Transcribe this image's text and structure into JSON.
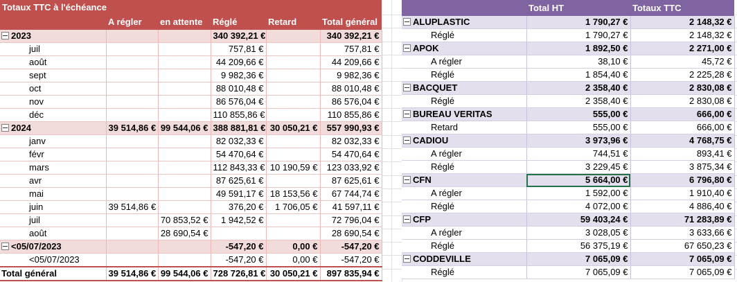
{
  "left_pivot": {
    "title": "Totaux TTC à l'échéance",
    "columns": [
      "",
      "A régler",
      "en attente",
      "Réglé",
      "Retard",
      "Total général"
    ],
    "rows": [
      {
        "level": 0,
        "label": "2023",
        "vals": [
          "",
          "",
          "340 392,21 €",
          "",
          "340 392,21 €"
        ]
      },
      {
        "level": 1,
        "label": "juil",
        "vals": [
          "",
          "",
          "757,81 €",
          "",
          "757,81 €"
        ]
      },
      {
        "level": 1,
        "label": "août",
        "vals": [
          "",
          "",
          "44 209,66 €",
          "",
          "44 209,66 €"
        ]
      },
      {
        "level": 1,
        "label": "sept",
        "vals": [
          "",
          "",
          "9 982,36 €",
          "",
          "9 982,36 €"
        ]
      },
      {
        "level": 1,
        "label": "oct",
        "vals": [
          "",
          "",
          "88 010,48 €",
          "",
          "88 010,48 €"
        ]
      },
      {
        "level": 1,
        "label": "nov",
        "vals": [
          "",
          "",
          "86 576,04 €",
          "",
          "86 576,04 €"
        ]
      },
      {
        "level": 1,
        "label": "déc",
        "vals": [
          "",
          "",
          "110 855,86 €",
          "",
          "110 855,86 €"
        ]
      },
      {
        "level": 0,
        "label": "2024",
        "vals": [
          "39 514,86 €",
          "99 544,06 €",
          "388 881,81 €",
          "30 050,21 €",
          "557 990,93 €"
        ]
      },
      {
        "level": 1,
        "label": "janv",
        "vals": [
          "",
          "",
          "82 032,33 €",
          "",
          "82 032,33 €"
        ]
      },
      {
        "level": 1,
        "label": "févr",
        "vals": [
          "",
          "",
          "54 470,64 €",
          "",
          "54 470,64 €"
        ]
      },
      {
        "level": 1,
        "label": "mars",
        "vals": [
          "",
          "",
          "112 843,33 €",
          "10 190,59 €",
          "123 033,92 €"
        ]
      },
      {
        "level": 1,
        "label": "avr",
        "vals": [
          "",
          "",
          "87 625,61 €",
          "",
          "87 625,61 €"
        ]
      },
      {
        "level": 1,
        "label": "mai",
        "vals": [
          "",
          "",
          "49 591,17 €",
          "18 153,56 €",
          "67 744,74 €"
        ]
      },
      {
        "level": 1,
        "label": "juin",
        "vals": [
          "39 514,86 €",
          "",
          "376,20 €",
          "1 706,05 €",
          "41 597,11 €"
        ]
      },
      {
        "level": 1,
        "label": "juil",
        "vals": [
          "",
          "70 853,52 €",
          "1 942,52 €",
          "",
          "72 796,04 €"
        ]
      },
      {
        "level": 1,
        "label": "août",
        "vals": [
          "",
          "28 690,54 €",
          "",
          "",
          "28 690,54 €"
        ]
      },
      {
        "level": 0,
        "label": "<05/07/2023",
        "vals": [
          "",
          "",
          "-547,20 €",
          "0,00 €",
          "-547,20 €"
        ]
      },
      {
        "level": 1,
        "label": "<05/07/2023",
        "vals": [
          "",
          "",
          "-547,20 €",
          "0,00 €",
          "-547,20 €"
        ]
      }
    ],
    "total": {
      "label": "Total général",
      "vals": [
        "39 514,86 €",
        "99 544,06 €",
        "728 726,81 €",
        "30 050,21 €",
        "897 835,94 €"
      ]
    }
  },
  "right_pivot": {
    "columns": [
      "",
      "Total HT",
      "Totaux TTC"
    ],
    "rows": [
      {
        "level": 0,
        "label": "ALUPLASTIC",
        "vals": [
          "1 790,27 €",
          "2 148,32 €"
        ]
      },
      {
        "level": 1,
        "label": "Réglé",
        "vals": [
          "1 790,27 €",
          "2 148,32 €"
        ]
      },
      {
        "level": 0,
        "label": "APOK",
        "vals": [
          "1 892,50 €",
          "2 271,00 €"
        ]
      },
      {
        "level": 1,
        "label": "A régler",
        "vals": [
          "38,10 €",
          "45,72 €"
        ]
      },
      {
        "level": 1,
        "label": "Réglé",
        "vals": [
          "1 854,40 €",
          "2 225,28 €"
        ]
      },
      {
        "level": 0,
        "label": "BACQUET",
        "vals": [
          "2 358,40 €",
          "2 830,08 €"
        ]
      },
      {
        "level": 1,
        "label": "Réglé",
        "vals": [
          "2 358,40 €",
          "2 830,08 €"
        ]
      },
      {
        "level": 0,
        "label": "BUREAU VERITAS",
        "vals": [
          "555,00 €",
          "666,00 €"
        ]
      },
      {
        "level": 1,
        "label": "Retard",
        "vals": [
          "555,00 €",
          "666,00 €"
        ]
      },
      {
        "level": 0,
        "label": "CADIOU",
        "vals": [
          "3 973,96 €",
          "4 768,75 €"
        ]
      },
      {
        "level": 1,
        "label": "A régler",
        "vals": [
          "744,51 €",
          "893,41 €"
        ]
      },
      {
        "level": 1,
        "label": "Réglé",
        "vals": [
          "3 229,45 €",
          "3 875,34 €"
        ]
      },
      {
        "level": 0,
        "label": "CFN",
        "vals": [
          "5 664,00 €",
          "6 796,80 €"
        ],
        "selected": true
      },
      {
        "level": 1,
        "label": "A régler",
        "vals": [
          "1 592,00 €",
          "1 910,40 €"
        ]
      },
      {
        "level": 1,
        "label": "Réglé",
        "vals": [
          "4 072,00 €",
          "4 886,40 €"
        ]
      },
      {
        "level": 0,
        "label": "CFP",
        "vals": [
          "59 403,24 €",
          "71 283,89 €"
        ]
      },
      {
        "level": 1,
        "label": "A régler",
        "vals": [
          "3 028,05 €",
          "3 633,66 €"
        ]
      },
      {
        "level": 1,
        "label": "Réglé",
        "vals": [
          "56 375,19 €",
          "67 650,23 €"
        ]
      },
      {
        "level": 0,
        "label": "CODDEVILLE",
        "vals": [
          "7 065,09 €",
          "7 065,09 €"
        ]
      },
      {
        "level": 1,
        "label": "Réglé",
        "vals": [
          "7 065,09 €",
          "7 065,09 €"
        ]
      }
    ]
  },
  "colors": {
    "left_header": "#c0504d",
    "left_group": "#f2dcdb",
    "right_header": "#8064a2",
    "right_group": "#e4dfec",
    "selection": "#217346"
  },
  "icons": {
    "collapse": "collapse-minus-icon"
  }
}
